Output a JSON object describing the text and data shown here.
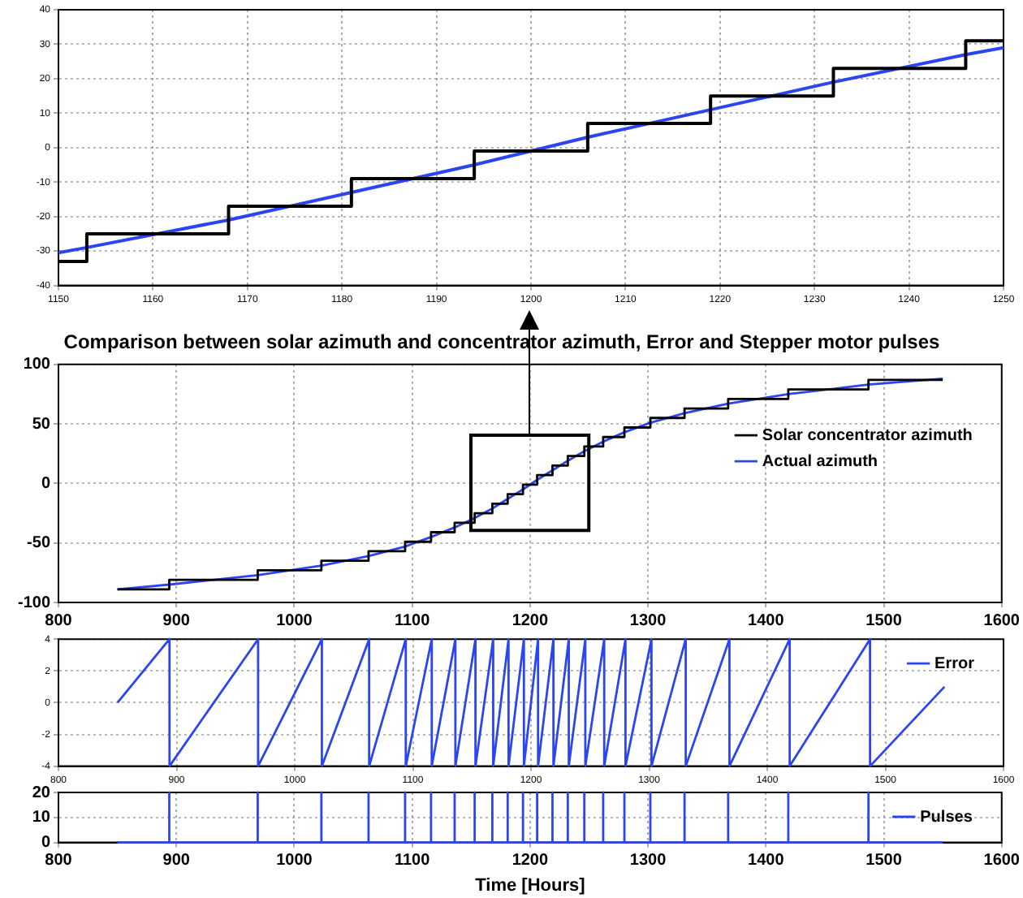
{
  "chart_data": [
    {
      "type": "line",
      "xlim": [
        1150,
        1250
      ],
      "ylim": [
        -40,
        40
      ],
      "xticks": [
        1150,
        1160,
        1170,
        1180,
        1190,
        1200,
        1210,
        1220,
        1230,
        1240,
        1250
      ],
      "yticks": [
        -40,
        -30,
        -20,
        -10,
        0,
        10,
        20,
        30,
        40
      ],
      "grid": true,
      "marker": "none",
      "line_style": "solid",
      "series": [
        {
          "type": "step",
          "color": "#000000",
          "x": [
            1150,
            1153,
            1168,
            1181,
            1194,
            1206,
            1219,
            1232,
            1246,
            1250
          ],
          "values": [
            -33,
            -25,
            -17,
            -9,
            -1,
            7,
            15,
            23,
            31,
            31
          ]
        },
        {
          "type": "line",
          "color": "#2b45f0",
          "x": [
            1150,
            1153,
            1168,
            1181,
            1194,
            1206,
            1219,
            1232,
            1246,
            1250
          ],
          "values": [
            -30.5,
            -29,
            -21,
            -13,
            -5,
            3,
            11,
            19,
            27,
            29
          ]
        }
      ]
    },
    {
      "type": "line",
      "title": "Comparison between solar azimuth and concentrator azimuth, Error and Stepper motor pulses",
      "xlim": [
        800,
        1600
      ],
      "ylim": [
        -100,
        100
      ],
      "xticks": [
        800,
        900,
        1000,
        1100,
        1200,
        1300,
        1400,
        1500,
        1600
      ],
      "yticks": [
        -100,
        -50,
        0,
        50,
        100
      ],
      "grid": true,
      "legend": "right",
      "marker": "none",
      "line_style": "solid",
      "series": [
        {
          "type": "step",
          "name": "Solar concentrator azimuth",
          "color": "#000000",
          "x": [
            850,
            894,
            969,
            1023,
            1063,
            1094,
            1116,
            1136,
            1153,
            1168,
            1181,
            1194,
            1206,
            1219,
            1232,
            1246,
            1262,
            1280,
            1302,
            1331,
            1368,
            1419,
            1487,
            1550
          ],
          "values": [
            -89,
            -81,
            -73,
            -65,
            -57,
            -49,
            -41,
            -33,
            -25,
            -17,
            -9,
            -1,
            7,
            15,
            23,
            31,
            39,
            47,
            55,
            63,
            71,
            79,
            87,
            87
          ]
        },
        {
          "type": "line",
          "name": "Actual azimuth",
          "color": "#2b45f0",
          "x": [
            850,
            894,
            969,
            1023,
            1063,
            1094,
            1116,
            1136,
            1153,
            1168,
            1181,
            1194,
            1206,
            1219,
            1232,
            1246,
            1262,
            1280,
            1302,
            1331,
            1368,
            1419,
            1487,
            1550
          ],
          "values": [
            -89,
            -85,
            -77,
            -69,
            -61,
            -53,
            -45,
            -37,
            -29,
            -21,
            -13,
            -5,
            3,
            11,
            19,
            27,
            35,
            43,
            51,
            59,
            67,
            75,
            83,
            88
          ]
        }
      ]
    },
    {
      "type": "line",
      "xlim": [
        800,
        1600
      ],
      "ylim": [
        -4,
        4
      ],
      "xticks": [
        800,
        900,
        1000,
        1100,
        1200,
        1300,
        1400,
        1500,
        1600
      ],
      "yticks": [
        -4,
        -2,
        0,
        2,
        4
      ],
      "grid": true,
      "legend": "top right",
      "marker": "none",
      "line_style": "solid",
      "series": [
        {
          "name": "Error",
          "color": "#2b45f0",
          "x": [
            850,
            894,
            894,
            969,
            969,
            1023,
            1023,
            1063,
            1063,
            1094,
            1094,
            1116,
            1116,
            1136,
            1136,
            1153,
            1153,
            1168,
            1168,
            1181,
            1181,
            1194,
            1194,
            1206,
            1206,
            1219,
            1219,
            1232,
            1232,
            1246,
            1246,
            1262,
            1262,
            1280,
            1280,
            1302,
            1302,
            1331,
            1331,
            1368,
            1368,
            1419,
            1419,
            1487,
            1487,
            1550
          ],
          "values": [
            0,
            4,
            -4,
            4,
            -4,
            4,
            -4,
            4,
            -4,
            4,
            -4,
            4,
            -4,
            4,
            -4,
            4,
            -4,
            4,
            -4,
            4,
            -4,
            4,
            -4,
            4,
            -4,
            4,
            -4,
            4,
            -4,
            4,
            -4,
            4,
            -4,
            4,
            -4,
            4,
            -4,
            4,
            -4,
            4,
            -4,
            4,
            -4,
            4,
            -4,
            1
          ]
        }
      ]
    },
    {
      "type": "line",
      "xlabel": "Time [Hours]",
      "xlim": [
        800,
        1600
      ],
      "ylim": [
        0,
        20
      ],
      "xticks": [
        800,
        900,
        1000,
        1100,
        1200,
        1300,
        1400,
        1500,
        1600
      ],
      "yticks": [
        0,
        10,
        20
      ],
      "grid": true,
      "legend": "top right",
      "marker": "none",
      "line_style": "solid",
      "series": [
        {
          "name": "Pulses",
          "color": "#2b45f0",
          "x": [
            850,
            894,
            894,
            894,
            969,
            969,
            969,
            1023,
            1023,
            1023,
            1063,
            1063,
            1063,
            1094,
            1094,
            1094,
            1116,
            1116,
            1116,
            1136,
            1136,
            1136,
            1153,
            1153,
            1153,
            1168,
            1168,
            1168,
            1181,
            1181,
            1181,
            1194,
            1194,
            1194,
            1206,
            1206,
            1206,
            1219,
            1219,
            1219,
            1232,
            1232,
            1232,
            1246,
            1246,
            1246,
            1262,
            1262,
            1262,
            1280,
            1280,
            1280,
            1302,
            1302,
            1302,
            1331,
            1331,
            1331,
            1368,
            1368,
            1368,
            1419,
            1419,
            1419,
            1487,
            1487,
            1487,
            1550
          ],
          "values": [
            0,
            0,
            20,
            0,
            0,
            20,
            0,
            0,
            20,
            0,
            0,
            20,
            0,
            0,
            20,
            0,
            0,
            20,
            0,
            0,
            20,
            0,
            0,
            20,
            0,
            0,
            20,
            0,
            0,
            20,
            0,
            0,
            20,
            0,
            0,
            20,
            0,
            0,
            20,
            0,
            0,
            20,
            0,
            0,
            20,
            0,
            0,
            20,
            0,
            0,
            20,
            0,
            0,
            20,
            0,
            0,
            20,
            0,
            0,
            20,
            0,
            0,
            20,
            0,
            0,
            20,
            0,
            0
          ]
        }
      ]
    }
  ]
}
